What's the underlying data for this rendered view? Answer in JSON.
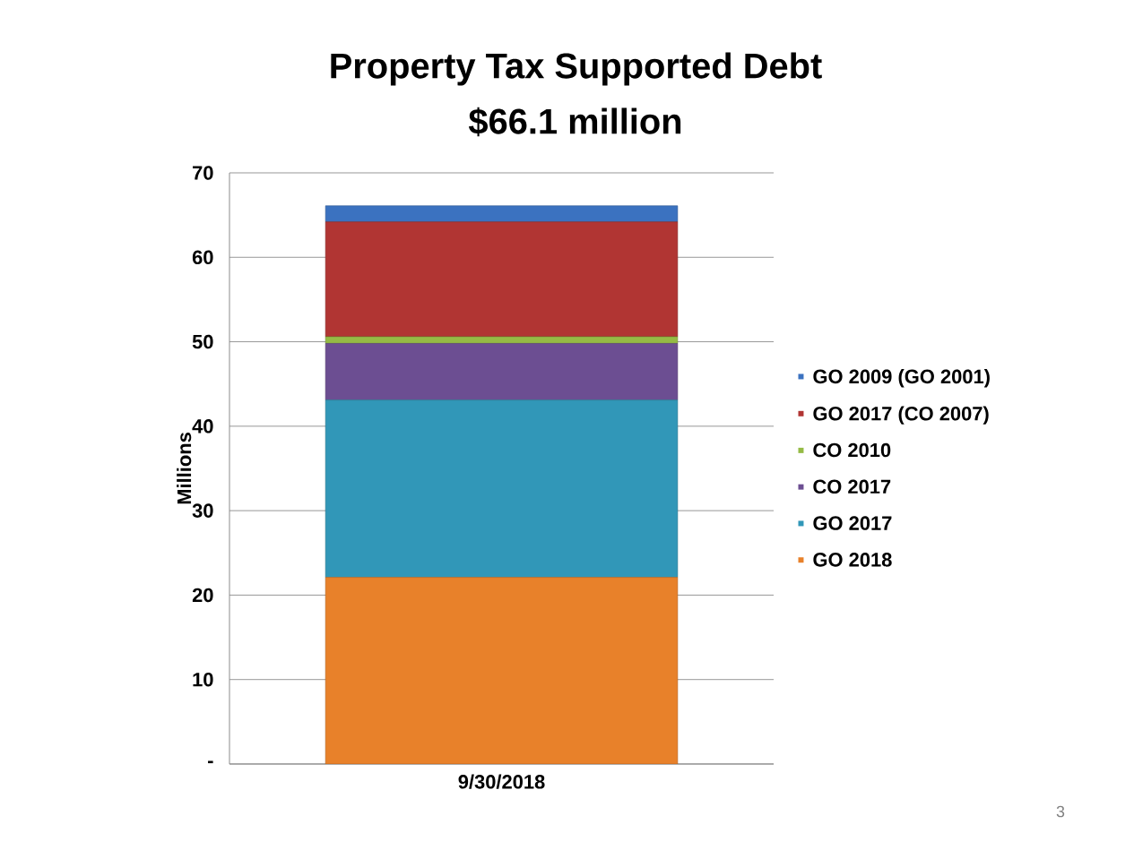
{
  "chart_data": {
    "type": "bar",
    "title": "Property Tax Supported Debt",
    "subtitle": "$66.1 million",
    "ylabel": "Millions",
    "categories": [
      "9/30/2018"
    ],
    "series": [
      {
        "name": "GO 2018",
        "color": "#e8812a",
        "values": [
          22.1
        ]
      },
      {
        "name": "GO 2017",
        "color": "#3197b8",
        "values": [
          21.0
        ]
      },
      {
        "name": "CO 2017",
        "color": "#6c4e92",
        "values": [
          6.7
        ]
      },
      {
        "name": "CO 2010",
        "color": "#95bb45",
        "values": [
          0.8
        ]
      },
      {
        "name": "GO 2017 (CO 2007)",
        "color": "#b13533",
        "values": [
          13.6
        ]
      },
      {
        "name": "GO 2009 (GO 2001)",
        "color": "#3b72c0",
        "values": [
          1.9
        ]
      }
    ],
    "stacked": true,
    "ylim": [
      0,
      70
    ],
    "yticks": [
      {
        "value": 0,
        "label": "-"
      },
      10,
      20,
      30,
      40,
      50,
      60,
      70
    ],
    "grid": "y",
    "legend": "right",
    "annotations": [
      "3"
    ]
  }
}
